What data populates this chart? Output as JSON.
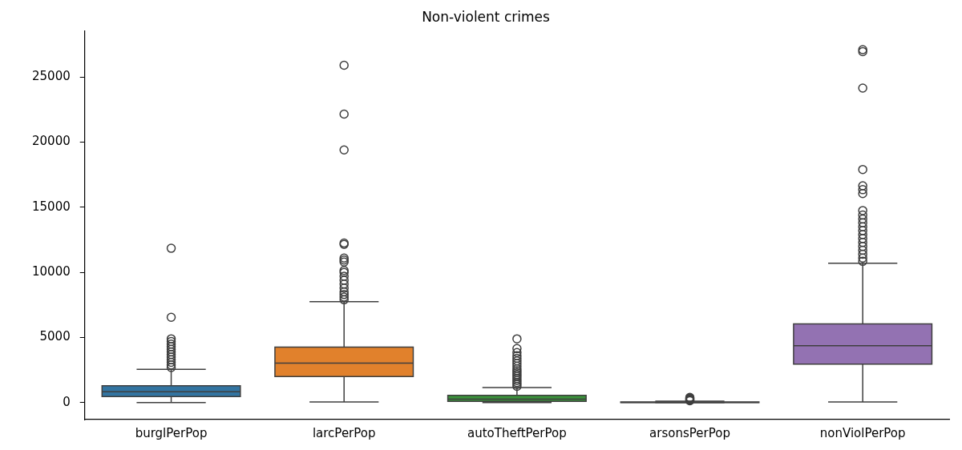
{
  "chart_data": {
    "type": "box",
    "title": "Non-violent crimes",
    "categories": [
      "burglPerPop",
      "larcPerPop",
      "autoTheftPerPop",
      "arsonsPerPop",
      "nonViolPerPop"
    ],
    "colors": [
      "#3274a1",
      "#e1812c",
      "#3a923a",
      "#c03d3e",
      "#9372b2"
    ],
    "boxes": [
      {
        "low": 0,
        "q1": 470,
        "median": 830,
        "q3": 1300,
        "high": 2550,
        "outliers": [
          2700,
          2900,
          3100,
          3300,
          3500,
          3700,
          3900,
          4100,
          4300,
          4500,
          4700,
          4900,
          6550,
          11850
        ]
      },
      {
        "low": 50,
        "q1": 2000,
        "median": 3030,
        "q3": 4270,
        "high": 7750,
        "outliers": [
          7900,
          8100,
          8300,
          8500,
          8800,
          9100,
          9400,
          9700,
          10000,
          10150,
          10800,
          10950,
          11100,
          12150,
          12250,
          19400,
          22150,
          25900
        ]
      },
      {
        "low": 0,
        "q1": 100,
        "median": 270,
        "q3": 560,
        "high": 1160,
        "outliers": [
          1250,
          1400,
          1550,
          1700,
          1850,
          2000,
          2150,
          2300,
          2450,
          2600,
          2800,
          3000,
          3200,
          3400,
          3600,
          3850,
          4150,
          4900
        ]
      },
      {
        "low": 0,
        "q1": 10,
        "median": 25,
        "q3": 50,
        "high": 110,
        "outliers": [
          150,
          200,
          250,
          300,
          350,
          400
        ]
      },
      {
        "low": 50,
        "q1": 2960,
        "median": 4370,
        "q3": 6050,
        "high": 10700,
        "outliers": [
          10850,
          11100,
          11400,
          11700,
          12000,
          12300,
          12600,
          12900,
          13200,
          13500,
          13800,
          14100,
          14400,
          14750,
          16050,
          16350,
          16650,
          17900,
          24150,
          26950,
          27100
        ]
      }
    ],
    "ylim": [
      -1300,
      28550
    ],
    "yticks": [
      0,
      5000,
      10000,
      15000,
      20000,
      25000
    ],
    "grid": false,
    "legend": false
  }
}
